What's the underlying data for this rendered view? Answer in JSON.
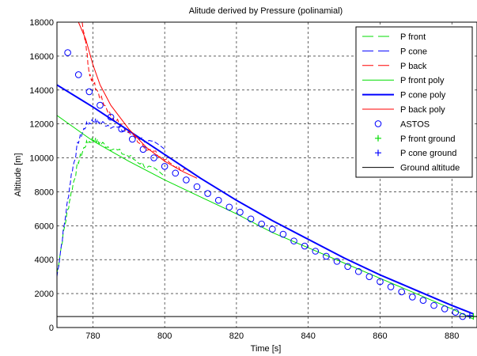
{
  "chart_data": {
    "type": "line",
    "title": "Alitude derived by Pressure (polinamial)",
    "xlabel": "Time [s]",
    "ylabel": "Altitude [m]",
    "xlim": [
      770,
      887
    ],
    "ylim": [
      0,
      18000
    ],
    "xticks": [
      780,
      800,
      820,
      840,
      860,
      880
    ],
    "yticks": [
      0,
      2000,
      4000,
      6000,
      8000,
      10000,
      12000,
      14000,
      16000,
      18000
    ],
    "grid": true,
    "legend_position": "top-right",
    "series": [
      {
        "name": "P front",
        "style": "dashed",
        "color": "#00dd00",
        "noisy": true,
        "x": [
          770,
          772,
          774,
          776,
          778,
          780,
          782,
          785,
          790,
          795,
          800
        ],
        "y": [
          3200,
          5800,
          8000,
          9800,
          10800,
          11100,
          10900,
          10600,
          10100,
          9500,
          8900
        ]
      },
      {
        "name": "P cone",
        "style": "dashed",
        "color": "#0000ff",
        "noisy": true,
        "x": [
          770,
          772,
          774,
          776,
          778,
          780,
          782,
          785,
          790,
          795,
          800
        ],
        "y": [
          3000,
          6000,
          9000,
          11000,
          11900,
          12200,
          12100,
          11900,
          11500,
          11000,
          10500
        ]
      },
      {
        "name": "P back",
        "style": "dashed",
        "color": "#ff0000",
        "noisy": true,
        "x": [
          777,
          778,
          779,
          780,
          782,
          785,
          790,
          795,
          800,
          805,
          809
        ],
        "y": [
          18000,
          16800,
          15000,
          14500,
          13600,
          12500,
          11500,
          10600,
          9900,
          9300,
          8900
        ]
      },
      {
        "name": "P front poly",
        "style": "solid",
        "color": "#00dd00",
        "width": 1,
        "x": [
          770,
          780,
          790,
          800,
          810,
          820,
          830,
          840,
          850,
          860,
          870,
          880,
          886
        ],
        "y": [
          12500,
          11000,
          9800,
          8700,
          7700,
          6700,
          5600,
          4700,
          3800,
          2900,
          2000,
          1100,
          500
        ]
      },
      {
        "name": "P cone poly",
        "style": "solid",
        "color": "#0000ff",
        "width": 2,
        "x": [
          770,
          780,
          790,
          800,
          810,
          820,
          830,
          840,
          850,
          860,
          870,
          880,
          886
        ],
        "y": [
          14300,
          13000,
          11600,
          10200,
          8800,
          7500,
          6300,
          5200,
          4100,
          3100,
          2200,
          1300,
          800
        ]
      },
      {
        "name": "P back poly",
        "style": "solid",
        "color": "#ff0000",
        "width": 1,
        "x": [
          776,
          778,
          780,
          782,
          785,
          790,
          795,
          800,
          805,
          809
        ],
        "y": [
          18000,
          17000,
          15500,
          14300,
          13100,
          11700,
          10600,
          9800,
          9200,
          8800
        ]
      },
      {
        "name": "ASTOS",
        "style": "circle",
        "color": "#0000ff",
        "x": [
          773,
          776,
          779,
          782,
          785,
          788,
          791,
          794,
          797,
          800,
          803,
          806,
          809,
          812,
          815,
          818,
          821,
          824,
          827,
          830,
          833,
          836,
          839,
          842,
          845,
          848,
          851,
          854,
          857,
          860,
          863,
          866,
          869,
          872,
          875,
          878,
          881,
          883
        ],
        "y": [
          16200,
          14900,
          13900,
          13100,
          12400,
          11700,
          11100,
          10500,
          10000,
          9500,
          9100,
          8700,
          8300,
          7900,
          7500,
          7100,
          6800,
          6400,
          6100,
          5800,
          5500,
          5100,
          4800,
          4500,
          4200,
          3900,
          3600,
          3300,
          3000,
          2700,
          2400,
          2100,
          1800,
          1600,
          1300,
          1100,
          900,
          650
        ]
      },
      {
        "name": "P front ground",
        "style": "plus",
        "color": "#00dd00",
        "x": [
          886
        ],
        "y": [
          650
        ]
      },
      {
        "name": "P cone ground",
        "style": "plus",
        "color": "#0000ff",
        "x": [
          885
        ],
        "y": [
          700
        ]
      },
      {
        "name": "Ground altitude",
        "style": "solid",
        "color": "#000000",
        "width": 1,
        "x": [
          770,
          887
        ],
        "y": [
          650,
          650
        ]
      }
    ]
  }
}
